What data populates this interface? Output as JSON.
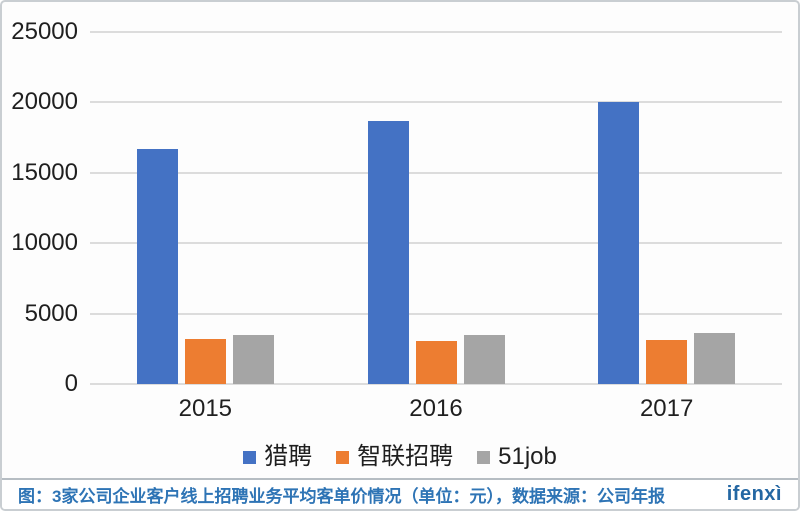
{
  "chart_data": {
    "type": "bar",
    "categories": [
      "2015",
      "2016",
      "2017"
    ],
    "series": [
      {
        "name": "猎聘",
        "color": "#4472C4",
        "values": [
          16700,
          18700,
          20000
        ]
      },
      {
        "name": "智联招聘",
        "color": "#ED7D31",
        "values": [
          3200,
          3050,
          3100
        ]
      },
      {
        "name": "51job",
        "color": "#A5A5A5",
        "values": [
          3450,
          3480,
          3600
        ]
      }
    ],
    "title": "",
    "xlabel": "",
    "ylabel": "",
    "ylim": [
      0,
      25000
    ],
    "yticks": [
      0,
      5000,
      10000,
      15000,
      20000,
      25000
    ],
    "grid": true,
    "legend_position": "bottom"
  },
  "footer": {
    "caption": "图：3家公司企业客户线上招聘业务平均客单价情况（单位：元），数据来源：公司年报",
    "logo": "ifenxì"
  },
  "colors": {
    "grid": "#dcdcdc",
    "tick_text": "#1f1f1f",
    "caption_text": "#2e74b5",
    "logo_text": "#2467a3",
    "frame_border": "#c9ced2"
  }
}
